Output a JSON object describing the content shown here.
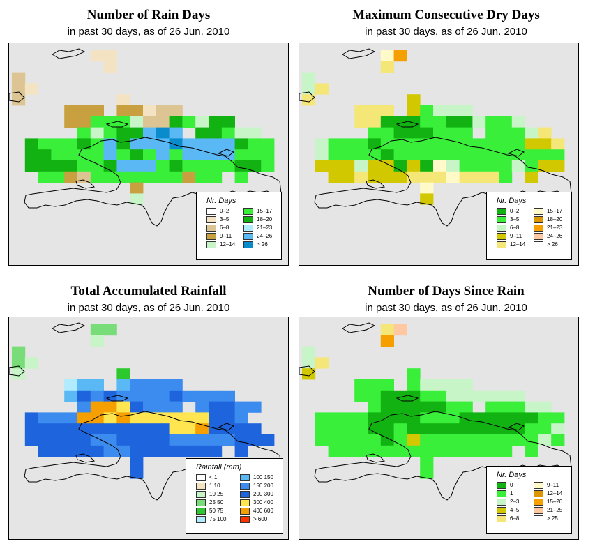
{
  "panels": [
    {
      "id": "rain-days",
      "title": "Number of Rain Days",
      "subtitle": "in past 30 days, as of  26 Jun. 2010",
      "legend": {
        "title": "Nr. Days",
        "items": [
          {
            "label": "0–2",
            "color": "#ffffff"
          },
          {
            "label": "3–5",
            "color": "#f3e3c3"
          },
          {
            "label": "6–8",
            "color": "#dcc493"
          },
          {
            "label": "9–11",
            "color": "#c8a040"
          },
          {
            "label": "12–14",
            "color": "#c8f5c8"
          },
          {
            "label": "15–17",
            "color": "#3aef3a"
          },
          {
            "label": "18–20",
            "color": "#11b211"
          },
          {
            "label": "21–23",
            "color": "#b0ebff"
          },
          {
            "label": "24–26",
            "color": "#5ab8f5"
          },
          {
            "label": "> 26",
            "color": "#0a8ccc"
          }
        ]
      },
      "grid": [
        "......11............",
        ".......1............",
        "2...................",
        "21..................",
        "2.......1...........",
        "....333.33122.......",
        "....3355542265466...",
        ".....54566898.66544.",
        ".6555658688898888655",
        ".6655558565858888555",
        ".6666556888565555665",
        "..55325555555355.5..",
        ".........3..........",
        ".........4.........."
      ]
    },
    {
      "id": "dry-days",
      "title": "Maximum Consecutive Dry Days",
      "subtitle": "in past 30 days, as of  26 Jun. 2010",
      "legend": {
        "title": "Nr. Days",
        "items": [
          {
            "label": "0–2",
            "color": "#11b211"
          },
          {
            "label": "3–5",
            "color": "#3aef3a"
          },
          {
            "label": "6–8",
            "color": "#c8f5c8"
          },
          {
            "label": "9–11",
            "color": "#d2c800"
          },
          {
            "label": "12–14",
            "color": "#f5e678"
          },
          {
            "label": "15–17",
            "color": "#fffac8"
          },
          {
            "label": "18–20",
            "color": "#dc9600"
          },
          {
            "label": "21–23",
            "color": "#f5a000"
          },
          {
            "label": "24–26",
            "color": "#ffc8a0"
          },
          {
            "label": "> 26",
            "color": "#ffffff"
          }
        ]
      },
      "grid": [
        "......57............",
        "......4.............",
        "2...................",
        "24..................",
        "4.......3...........",
        "....444.31222.......",
        "....4400011002112...",
        ".....11000111.11124.",
        ".2111011111111111334",
        ".2111101111111111111",
        ".3332330305211112133",
        "..33433344454441.3..",
        ".........5..........",
        ".........3.........."
      ]
    },
    {
      "id": "total-rainfall",
      "title": "Total Accumulated Rainfall",
      "subtitle": "in past 30 days, as of  26 Jun. 2010",
      "legend": {
        "title": "Rainfall (mm)",
        "items": [
          {
            "label": "< 1",
            "color": "#ffffff"
          },
          {
            "label": "1    10",
            "color": "#f3e3c3"
          },
          {
            "label": "10    25",
            "color": "#c8f5c8"
          },
          {
            "label": "25    50",
            "color": "#78dc78"
          },
          {
            "label": "50    75",
            "color": "#2dc82d"
          },
          {
            "label": "75    100",
            "color": "#b0ebff"
          },
          {
            "label": "100    150",
            "color": "#5ab8f5"
          },
          {
            "label": "150    200",
            "color": "#3c8cf0"
          },
          {
            "label": "200    300",
            "color": "#1e64dc"
          },
          {
            "label": "300    400",
            "color": "#ffe650"
          },
          {
            "label": "400    600",
            "color": "#f5a000"
          },
          {
            "label": "> 600",
            "color": "#ff3200"
          }
        ]
      },
      "grid": [
        "......33............",
        "......2.............",
        "3...................",
        "32..................",
        "2.......4...........",
        "....566.67777.......",
        "....6878777787777...",
        ".....7AA98777.78877.",
        ".8777AA9A999999887..",
        ".8888888888899A8888.",
        ".8888877888877777888",
        "..88888778888888.8..",
        ".........8..........",
        ".........8.........."
      ]
    },
    {
      "id": "days-since-rain",
      "title": "Number of Days Since Rain",
      "subtitle": "in past 30 days, as of  26 Jun. 2010",
      "legend": {
        "title": "Nr. Days",
        "items": [
          {
            "label": "0",
            "color": "#11b211"
          },
          {
            "label": "1",
            "color": "#3aef3a"
          },
          {
            "label": "2–3",
            "color": "#c8f5c8"
          },
          {
            "label": "4–5",
            "color": "#d2c800"
          },
          {
            "label": "6–8",
            "color": "#f5e678"
          },
          {
            "label": "9–11",
            "color": "#fffac8"
          },
          {
            "label": "12–14",
            "color": "#dc9600"
          },
          {
            "label": "15–20",
            "color": "#f5a000"
          },
          {
            "label": "21–25",
            "color": "#ffc8a0"
          },
          {
            "label": "> 25",
            "color": "#ffffff"
          }
        ]
      },
      "grid": [
        "......48............",
        "......7.............",
        "2...................",
        "24..................",
        "3.......1...........",
        "....111.12222.......",
        "....1100011222222...",
        ".....10000011.11122.",
        ".1111000011100000011",
        ".1111001000000000112",
        ".1111101311111111121",
        "..11111111111111.1..",
        ".........1..........",
        ".........1.........."
      ]
    }
  ]
}
